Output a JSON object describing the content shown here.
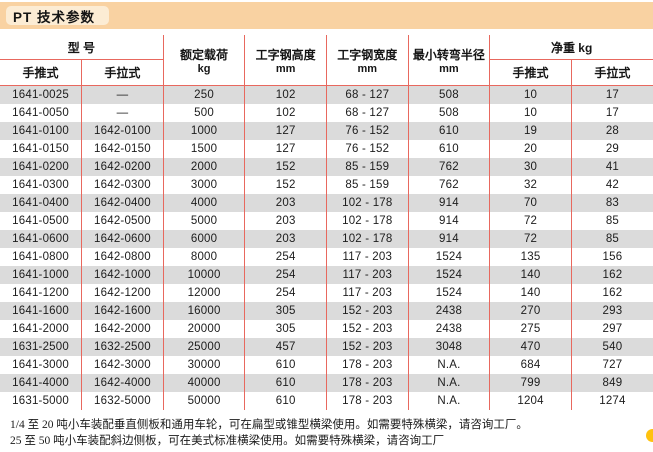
{
  "title": "PT 技术参数",
  "table": {
    "header": {
      "model_group": "型 号",
      "push": "手推式",
      "pull": "手拉式",
      "load": "额定载荷",
      "load_unit": "kg",
      "beam_height": "工字钢高度",
      "beam_height_unit": "mm",
      "beam_width": "工字钢宽度",
      "beam_width_unit": "mm",
      "turn_radius": "最小转弯半径",
      "turn_radius_unit": "mm",
      "net_weight_group": "净重  kg",
      "net_push": "手推式",
      "net_pull": "手拉式"
    },
    "rows": [
      [
        "1641-0025",
        "—",
        "250",
        "102",
        "68 - 127",
        "508",
        "10",
        "17"
      ],
      [
        "1641-0050",
        "—",
        "500",
        "102",
        "68 - 127",
        "508",
        "10",
        "17"
      ],
      [
        "1641-0100",
        "1642-0100",
        "1000",
        "127",
        "76 - 152",
        "610",
        "19",
        "28"
      ],
      [
        "1641-0150",
        "1642-0150",
        "1500",
        "127",
        "76 - 152",
        "610",
        "20",
        "29"
      ],
      [
        "1641-0200",
        "1642-0200",
        "2000",
        "152",
        "85 - 159",
        "762",
        "30",
        "41"
      ],
      [
        "1641-0300",
        "1642-0300",
        "3000",
        "152",
        "85 - 159",
        "762",
        "32",
        "42"
      ],
      [
        "1641-0400",
        "1642-0400",
        "4000",
        "203",
        "102 - 178",
        "914",
        "70",
        "83"
      ],
      [
        "1641-0500",
        "1642-0500",
        "5000",
        "203",
        "102 - 178",
        "914",
        "72",
        "85"
      ],
      [
        "1641-0600",
        "1642-0600",
        "6000",
        "203",
        "102 - 178",
        "914",
        "72",
        "85"
      ],
      [
        "1641-0800",
        "1642-0800",
        "8000",
        "254",
        "117 - 203",
        "1524",
        "135",
        "156"
      ],
      [
        "1641-1000",
        "1642-1000",
        "10000",
        "254",
        "117 - 203",
        "1524",
        "140",
        "162"
      ],
      [
        "1641-1200",
        "1642-1200",
        "12000",
        "254",
        "117 - 203",
        "1524",
        "140",
        "162"
      ],
      [
        "1641-1600",
        "1642-1600",
        "16000",
        "305",
        "152 - 203",
        "2438",
        "270",
        "293"
      ],
      [
        "1641-2000",
        "1642-2000",
        "20000",
        "305",
        "152 - 203",
        "2438",
        "275",
        "297"
      ],
      [
        "1631-2500",
        "1632-2500",
        "25000",
        "457",
        "152 - 203",
        "3048",
        "470",
        "540"
      ],
      [
        "1641-3000",
        "1642-3000",
        "30000",
        "610",
        "178 - 203",
        "N.A.",
        "684",
        "727"
      ],
      [
        "1641-4000",
        "1642-4000",
        "40000",
        "610",
        "178 - 203",
        "N.A.",
        "799",
        "849"
      ],
      [
        "1631-5000",
        "1632-5000",
        "50000",
        "610",
        "178 - 203",
        "N.A.",
        "1204",
        "1274"
      ]
    ]
  },
  "notes": [
    "1/4 至 20 吨小车装配垂直侧板和通用车轮，可在扁型或锥型横梁使用。如需要特殊横梁，请咨询工厂。",
    "25 至 50 吨小车装配斜边侧板，可在美式标准横梁使用。如需要特殊横梁，请咨询工厂"
  ],
  "colors": {
    "band_peach": "#f9d2a2",
    "title_tab_cream": "#fcecd4",
    "grid_salmon": "#e8685e",
    "row_gray": "#dbdbdb",
    "text_dark": "#1c1c1c",
    "corner_dot_yellow": "#ffc20e"
  }
}
